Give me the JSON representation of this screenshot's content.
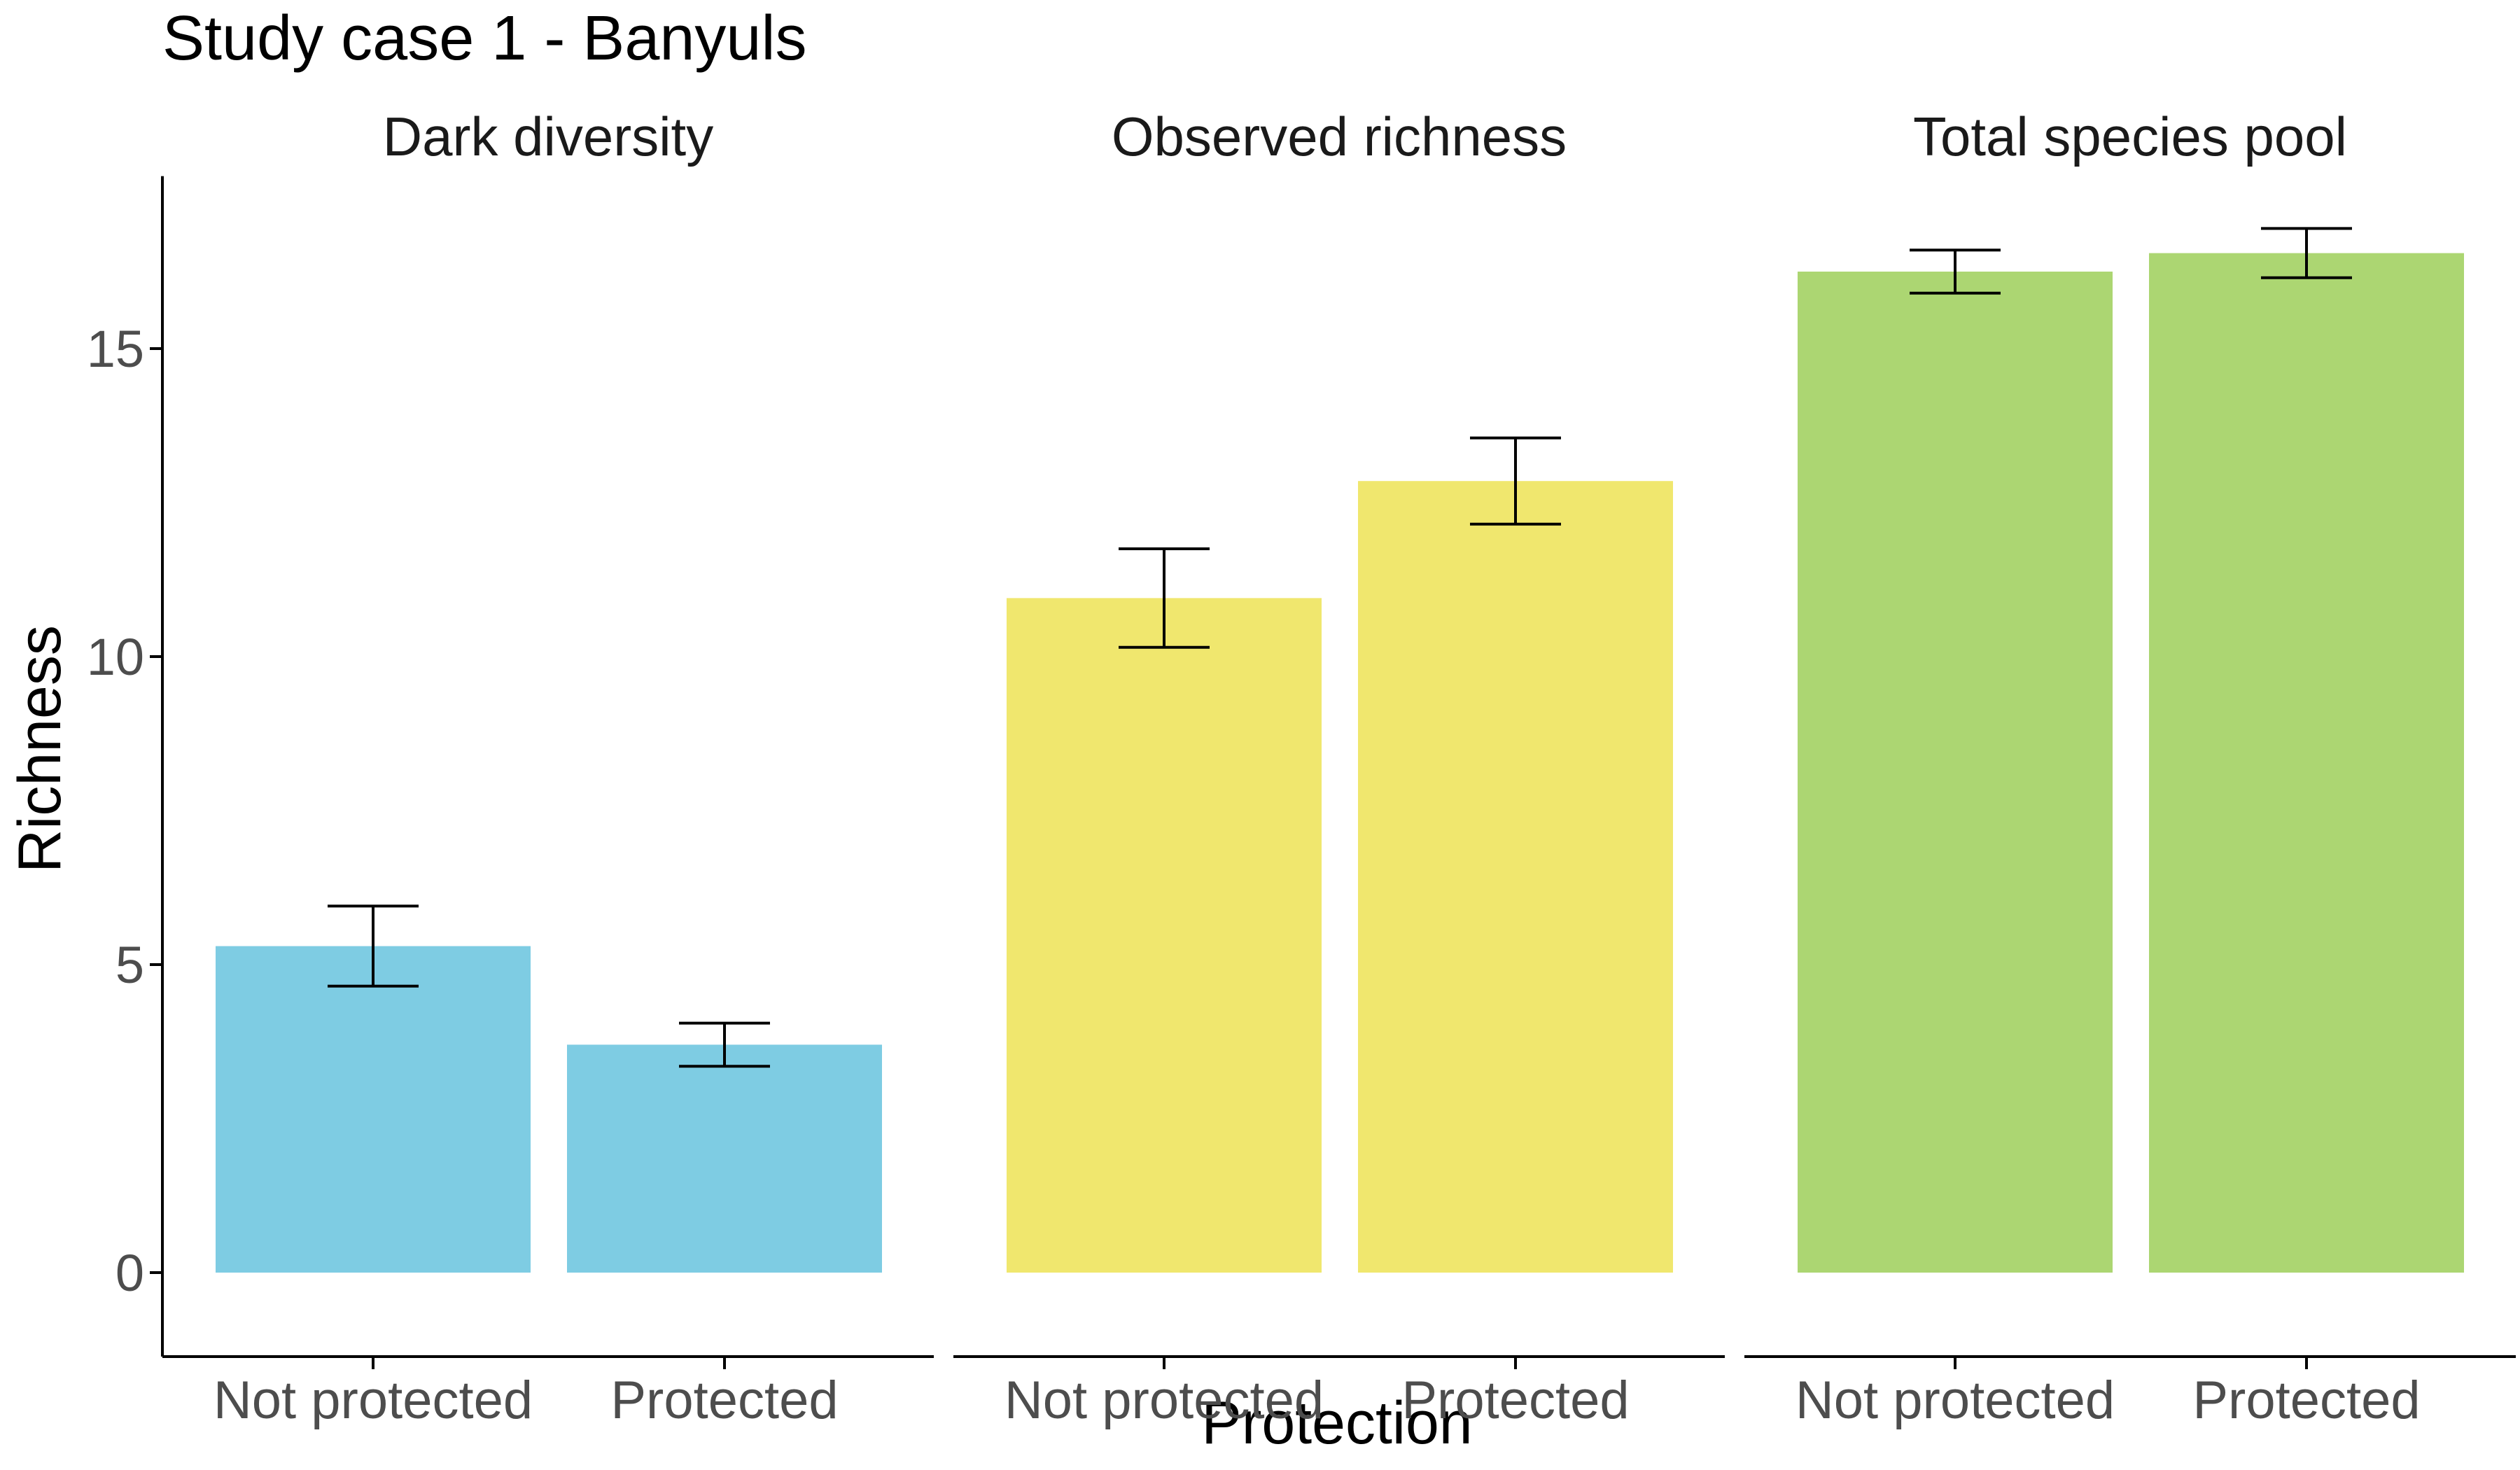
{
  "chart_data": {
    "type": "bar",
    "title": "Study case 1 - Banyuls",
    "xlabel": "Protection",
    "ylabel": "Richness",
    "ylim": [
      -1.5,
      17.8
    ],
    "yticks": [
      0,
      5,
      10,
      15
    ],
    "categories": [
      "Not protected",
      "Protected"
    ],
    "grid": false,
    "legend": "none",
    "facets": [
      {
        "name": "Dark diversity",
        "color": "#7ECCE3",
        "values": [
          5.3,
          3.7
        ],
        "error_low": [
          4.65,
          3.35
        ],
        "error_high": [
          5.95,
          4.05
        ]
      },
      {
        "name": "Observed richness",
        "color": "#F0E76E",
        "values": [
          10.95,
          12.85
        ],
        "error_low": [
          10.15,
          12.15
        ],
        "error_high": [
          11.75,
          13.55
        ]
      },
      {
        "name": "Total species pool",
        "color": "#ACD672",
        "values": [
          16.25,
          16.55
        ],
        "error_low": [
          15.9,
          16.15
        ],
        "error_high": [
          16.6,
          16.95
        ]
      }
    ]
  }
}
